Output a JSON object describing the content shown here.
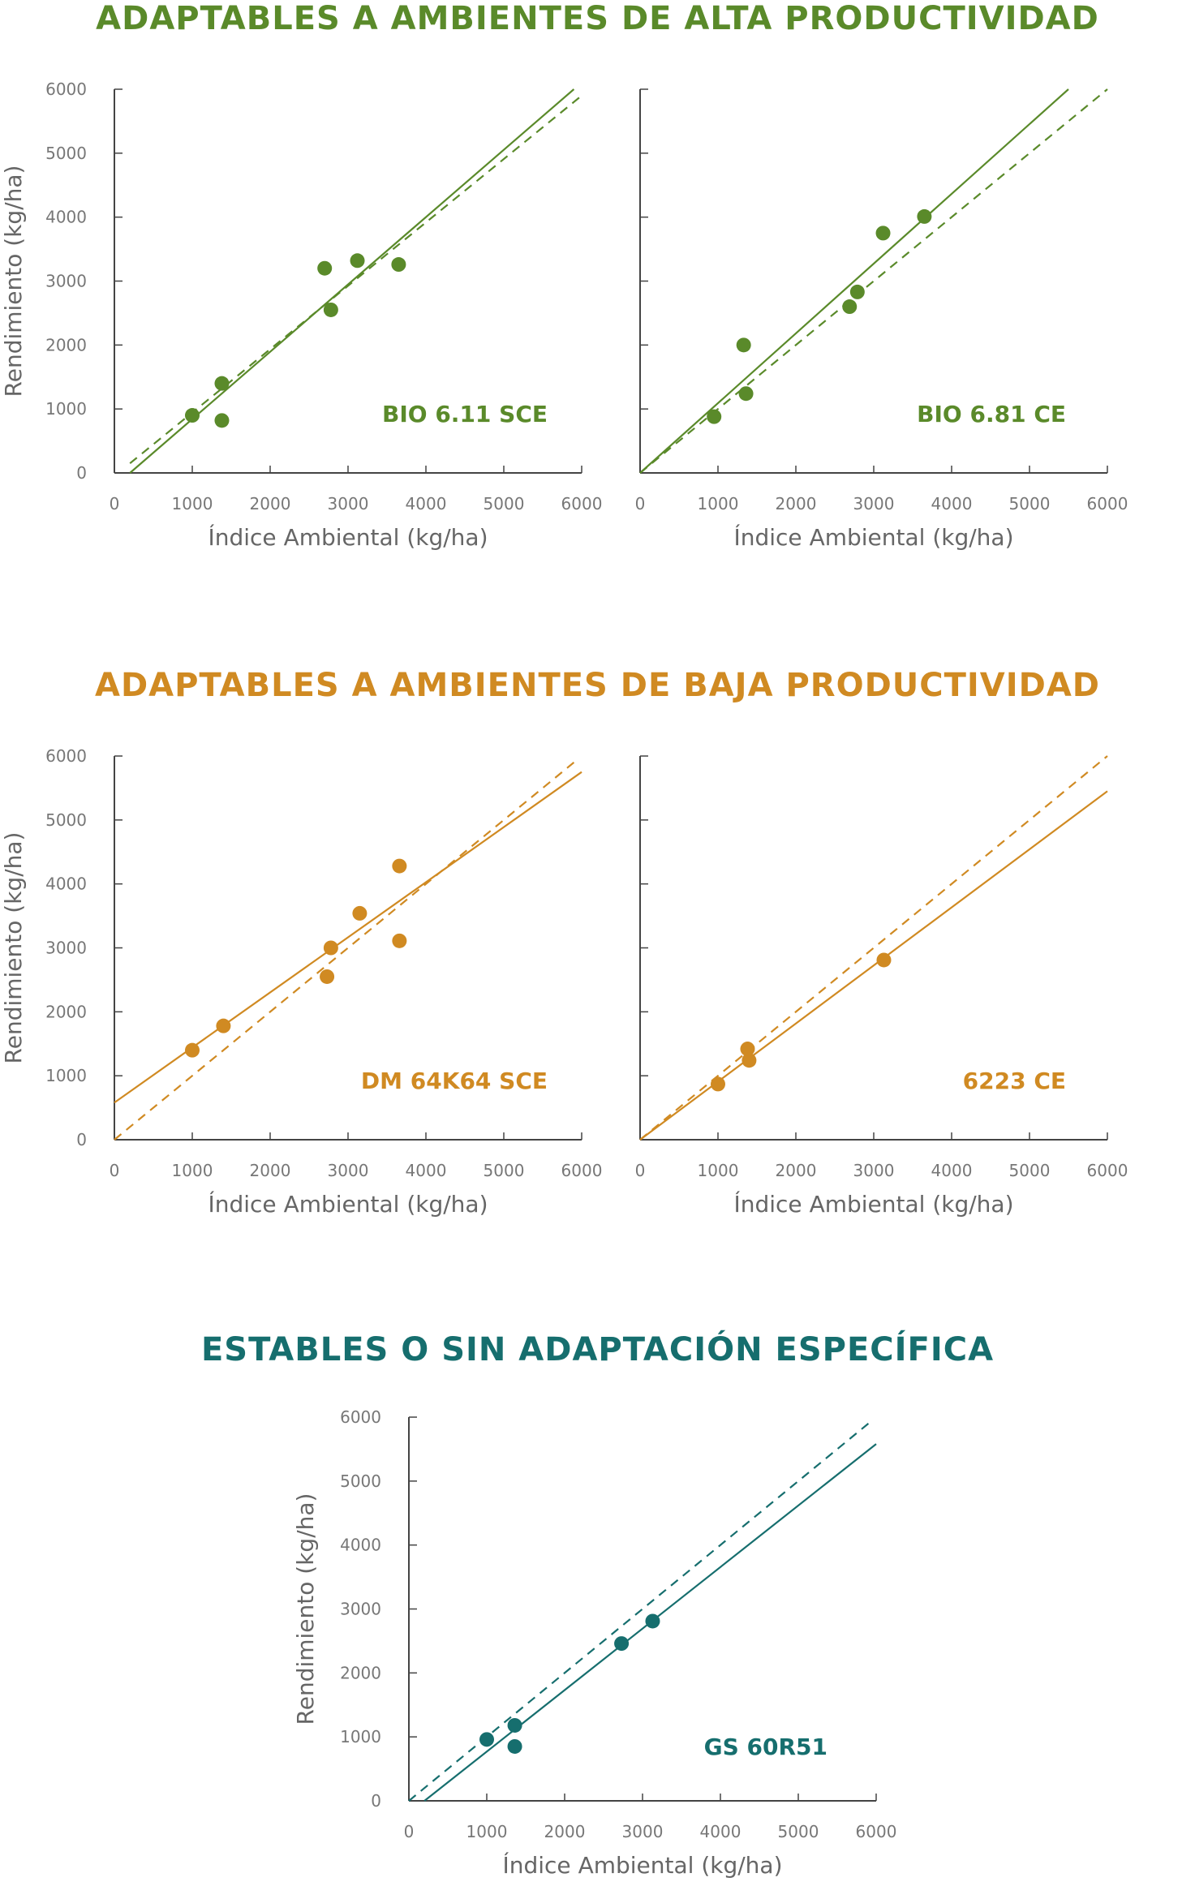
{
  "sections": [
    {
      "title": "ADAPTABLES A AMBIENTES DE ALTA PRODUCTIVIDAD",
      "color": "#5a8a2a"
    },
    {
      "title": "ADAPTABLES A AMBIENTES DE BAJA PRODUCTIVIDAD",
      "color": "#d08a22"
    },
    {
      "title": "ESTABLES O SIN ADAPTACIÓN ESPECÍFICA",
      "color": "#166e6e"
    }
  ],
  "chart_data": [
    {
      "type": "scatter",
      "label": "BIO 6.11 SCE",
      "color": "#5a8a2a",
      "xlabel": "Índice Ambiental (kg/ha)",
      "ylabel": "Rendimiento (kg/ha)",
      "xlim": [
        0,
        6000
      ],
      "ylim": [
        0,
        6000
      ],
      "xticks": [
        0,
        1000,
        2000,
        3000,
        4000,
        5000,
        6000
      ],
      "yticks": [
        0,
        1000,
        2000,
        3000,
        4000,
        5000,
        6000
      ],
      "show_y_tick_labels": true,
      "points": [
        {
          "x": 1000,
          "y": 900
        },
        {
          "x": 1380,
          "y": 1400
        },
        {
          "x": 1380,
          "y": 820
        },
        {
          "x": 2700,
          "y": 3200
        },
        {
          "x": 2780,
          "y": 2550
        },
        {
          "x": 3120,
          "y": 3320
        },
        {
          "x": 3650,
          "y": 3260
        }
      ],
      "regression": {
        "x": [
          200,
          5900
        ],
        "y": [
          0,
          6000
        ]
      },
      "reference": {
        "x": [
          200,
          6000
        ],
        "y": [
          150,
          5900
        ]
      }
    },
    {
      "type": "scatter",
      "label": "BIO 6.81 CE",
      "color": "#5a8a2a",
      "xlabel": "Índice Ambiental (kg/ha)",
      "ylabel": "",
      "xlim": [
        0,
        6000
      ],
      "ylim": [
        0,
        6000
      ],
      "xticks": [
        0,
        1000,
        2000,
        3000,
        4000,
        5000,
        6000
      ],
      "yticks": [
        0,
        1000,
        2000,
        3000,
        4000,
        5000,
        6000
      ],
      "show_y_tick_labels": false,
      "points": [
        {
          "x": 950,
          "y": 880
        },
        {
          "x": 1330,
          "y": 2000
        },
        {
          "x": 1360,
          "y": 1240
        },
        {
          "x": 2690,
          "y": 2600
        },
        {
          "x": 2790,
          "y": 2830
        },
        {
          "x": 3120,
          "y": 3750
        },
        {
          "x": 3650,
          "y": 4010
        }
      ],
      "regression": {
        "x": [
          0,
          5500
        ],
        "y": [
          0,
          6000
        ]
      },
      "reference": {
        "x": [
          0,
          6000
        ],
        "y": [
          0,
          6000
        ]
      }
    },
    {
      "type": "scatter",
      "label": "DM 64K64 SCE",
      "color": "#d08a22",
      "xlabel": "Índice Ambiental (kg/ha)",
      "ylabel": "Rendimiento (kg/ha)",
      "xlim": [
        0,
        6000
      ],
      "ylim": [
        0,
        6000
      ],
      "xticks": [
        0,
        1000,
        2000,
        3000,
        4000,
        5000,
        6000
      ],
      "yticks": [
        0,
        1000,
        2000,
        3000,
        4000,
        5000,
        6000
      ],
      "show_y_tick_labels": true,
      "points": [
        {
          "x": 1000,
          "y": 1400
        },
        {
          "x": 1400,
          "y": 1780
        },
        {
          "x": 2730,
          "y": 2550
        },
        {
          "x": 2780,
          "y": 3000
        },
        {
          "x": 3150,
          "y": 3540
        },
        {
          "x": 3660,
          "y": 3110
        },
        {
          "x": 3660,
          "y": 4280
        }
      ],
      "regression": {
        "x": [
          0,
          6000
        ],
        "y": [
          580,
          5750
        ]
      },
      "reference": {
        "x": [
          0,
          5900
        ],
        "y": [
          0,
          5900
        ]
      }
    },
    {
      "type": "scatter",
      "label": "6223 CE",
      "color": "#d08a22",
      "xlabel": "Índice Ambiental (kg/ha)",
      "ylabel": "",
      "xlim": [
        0,
        6000
      ],
      "ylim": [
        0,
        6000
      ],
      "xticks": [
        0,
        1000,
        2000,
        3000,
        4000,
        5000,
        6000
      ],
      "yticks": [
        0,
        1000,
        2000,
        3000,
        4000,
        5000,
        6000
      ],
      "show_y_tick_labels": false,
      "points": [
        {
          "x": 1000,
          "y": 870
        },
        {
          "x": 1380,
          "y": 1420
        },
        {
          "x": 1400,
          "y": 1240
        },
        {
          "x": 3130,
          "y": 2810
        }
      ],
      "regression": {
        "x": [
          0,
          6000
        ],
        "y": [
          0,
          5450
        ]
      },
      "reference": {
        "x": [
          0,
          6000
        ],
        "y": [
          0,
          6000
        ]
      }
    },
    {
      "type": "scatter",
      "label": "GS 60R51",
      "color": "#166e6e",
      "xlabel": "Índice Ambiental (kg/ha)",
      "ylabel": "Rendimiento (kg/ha)",
      "xlim": [
        0,
        6000
      ],
      "ylim": [
        0,
        6000
      ],
      "xticks": [
        0,
        1000,
        2000,
        3000,
        4000,
        5000,
        6000
      ],
      "yticks": [
        0,
        1000,
        2000,
        3000,
        4000,
        5000,
        6000
      ],
      "show_y_tick_labels": true,
      "points": [
        {
          "x": 1000,
          "y": 960
        },
        {
          "x": 1360,
          "y": 1180
        },
        {
          "x": 1360,
          "y": 850
        },
        {
          "x": 2730,
          "y": 2460
        },
        {
          "x": 3130,
          "y": 2810
        }
      ],
      "regression": {
        "x": [
          200,
          6000
        ],
        "y": [
          0,
          5580
        ]
      },
      "reference": {
        "x": [
          0,
          5900
        ],
        "y": [
          0,
          5900
        ]
      }
    }
  ]
}
